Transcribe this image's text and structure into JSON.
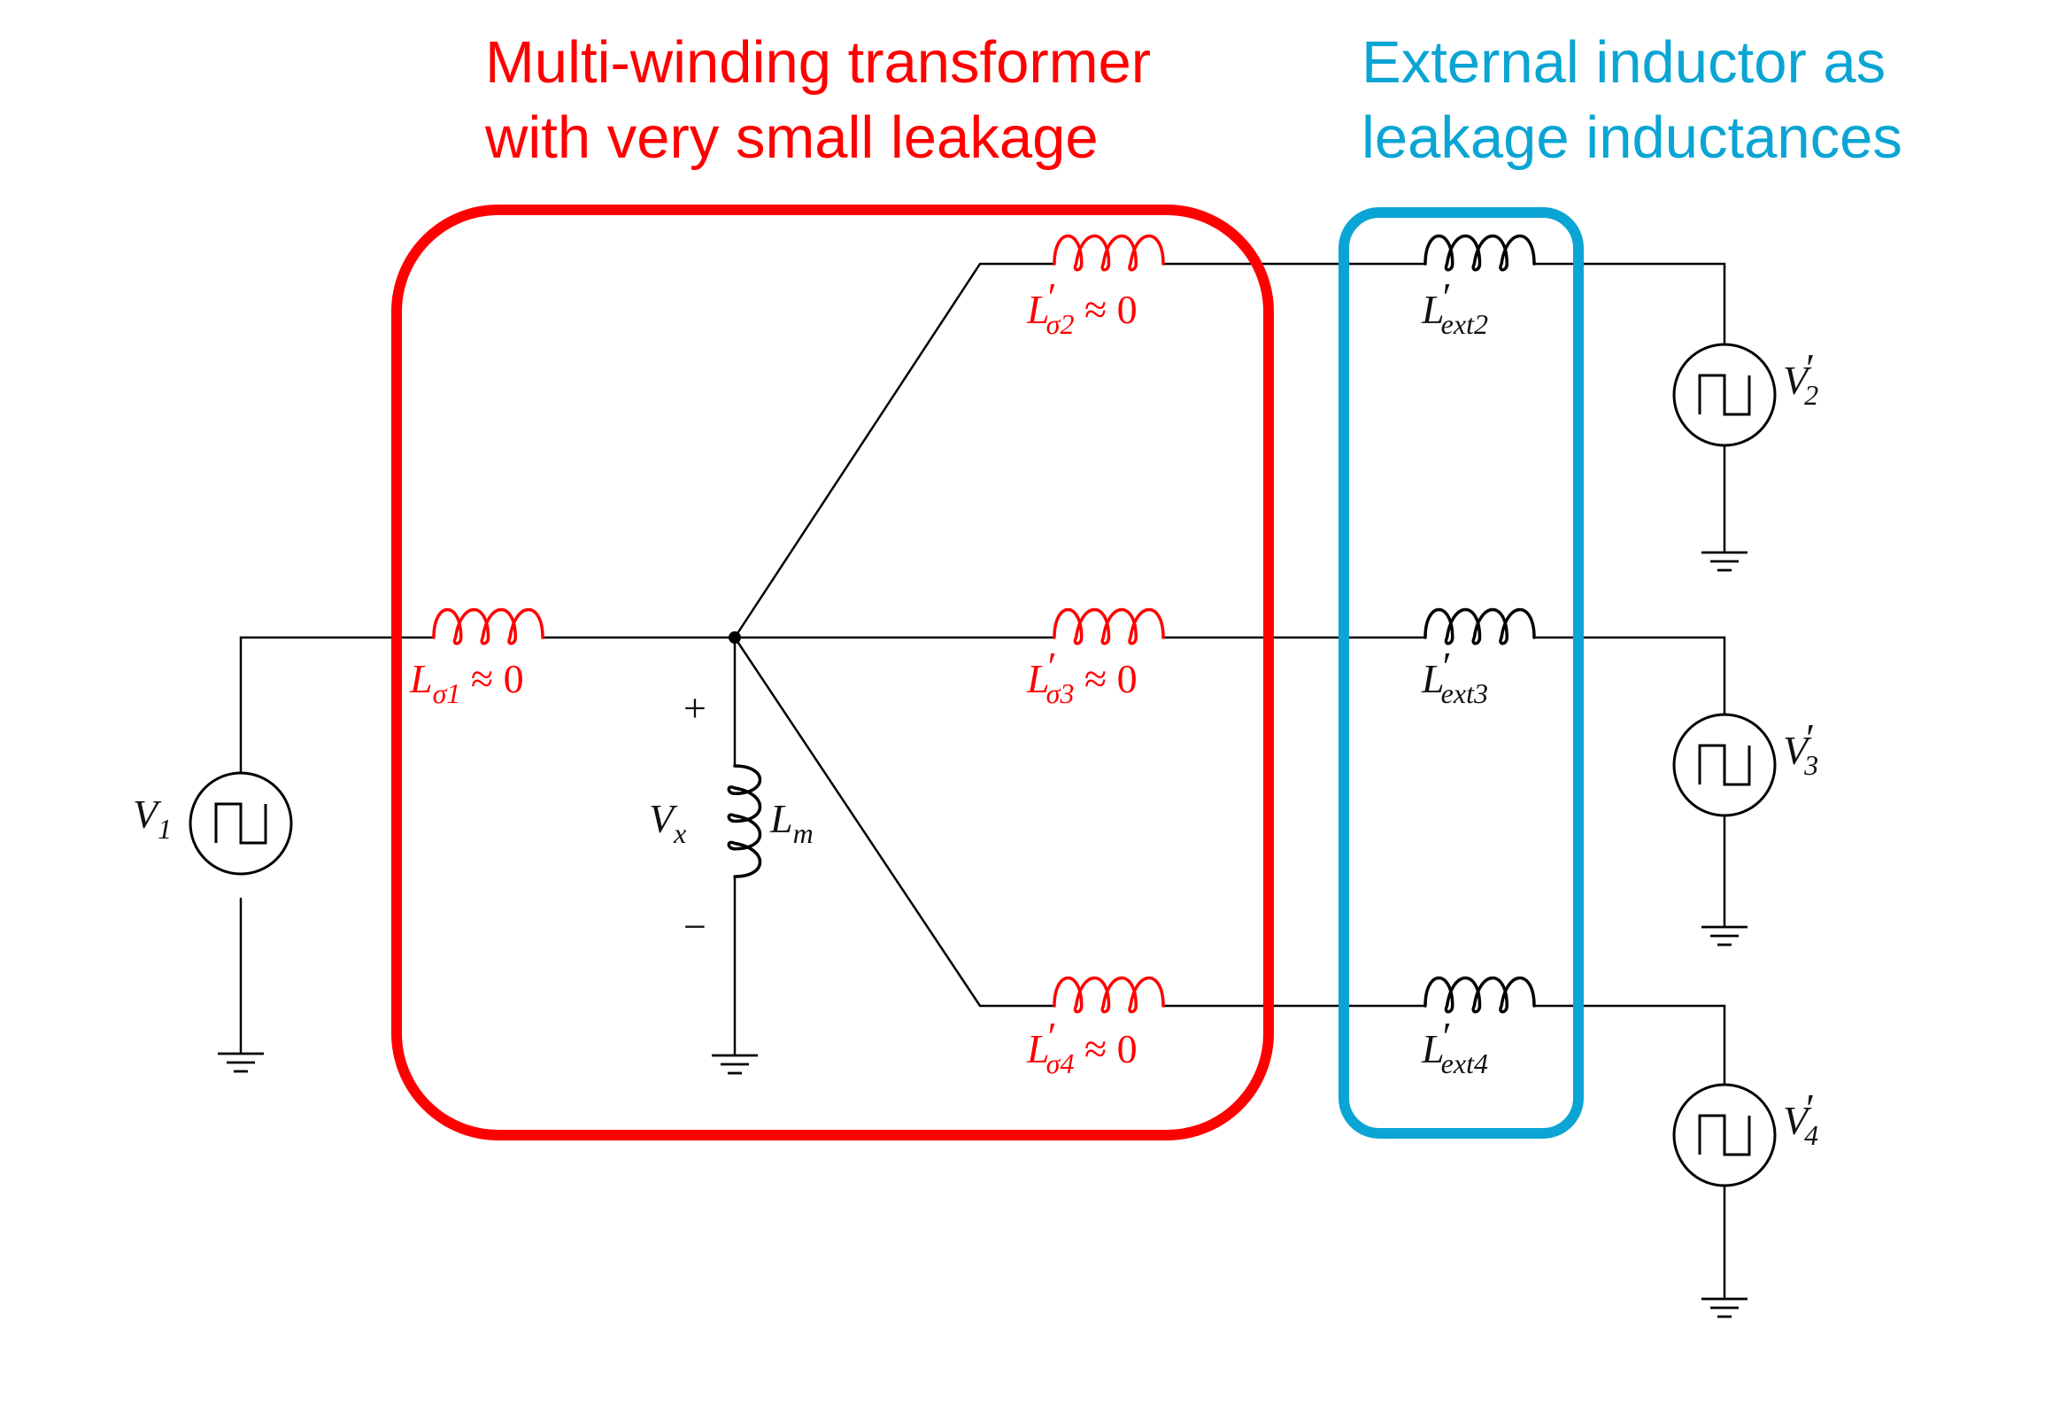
{
  "colors": {
    "transformer": "#ff0000",
    "external": "#0aa5d4",
    "wire": "#000000",
    "label": "#111111"
  },
  "headings": {
    "transformer": {
      "line1": "Multi-winding transformer",
      "line2": "with very small leakage"
    },
    "external": {
      "line1": "External inductor as",
      "line2": "leakage inductances"
    }
  },
  "labels": {
    "l_sigma1": {
      "sym": "L",
      "sub": "σ1",
      "tail": " ≈ 0"
    },
    "l_sigma2": {
      "sym": "L",
      "prime": "′",
      "sub": "σ2",
      "tail": " ≈ 0"
    },
    "l_sigma3": {
      "sym": "L",
      "prime": "′",
      "sub": "σ3",
      "tail": " ≈ 0"
    },
    "l_sigma4": {
      "sym": "L",
      "prime": "′",
      "sub": "σ4",
      "tail": " ≈ 0"
    },
    "l_ext2": {
      "sym": "L",
      "prime": "′",
      "sub": "ext2"
    },
    "l_ext3": {
      "sym": "L",
      "prime": "′",
      "sub": "ext3"
    },
    "l_ext4": {
      "sym": "L",
      "prime": "′",
      "sub": "ext4"
    },
    "l_m": {
      "sym": "L",
      "sub": "m"
    },
    "v_x": {
      "sym": "V",
      "sub": "x"
    },
    "v_1": {
      "sym": "V",
      "sub": "1"
    },
    "v_2": {
      "sym": "V",
      "prime": "′",
      "sub": "2"
    },
    "v_3": {
      "sym": "V",
      "prime": "′",
      "sub": "3"
    },
    "v_4": {
      "sym": "V",
      "prime": "′",
      "sub": "4"
    },
    "plus": "+",
    "minus": "−"
  }
}
